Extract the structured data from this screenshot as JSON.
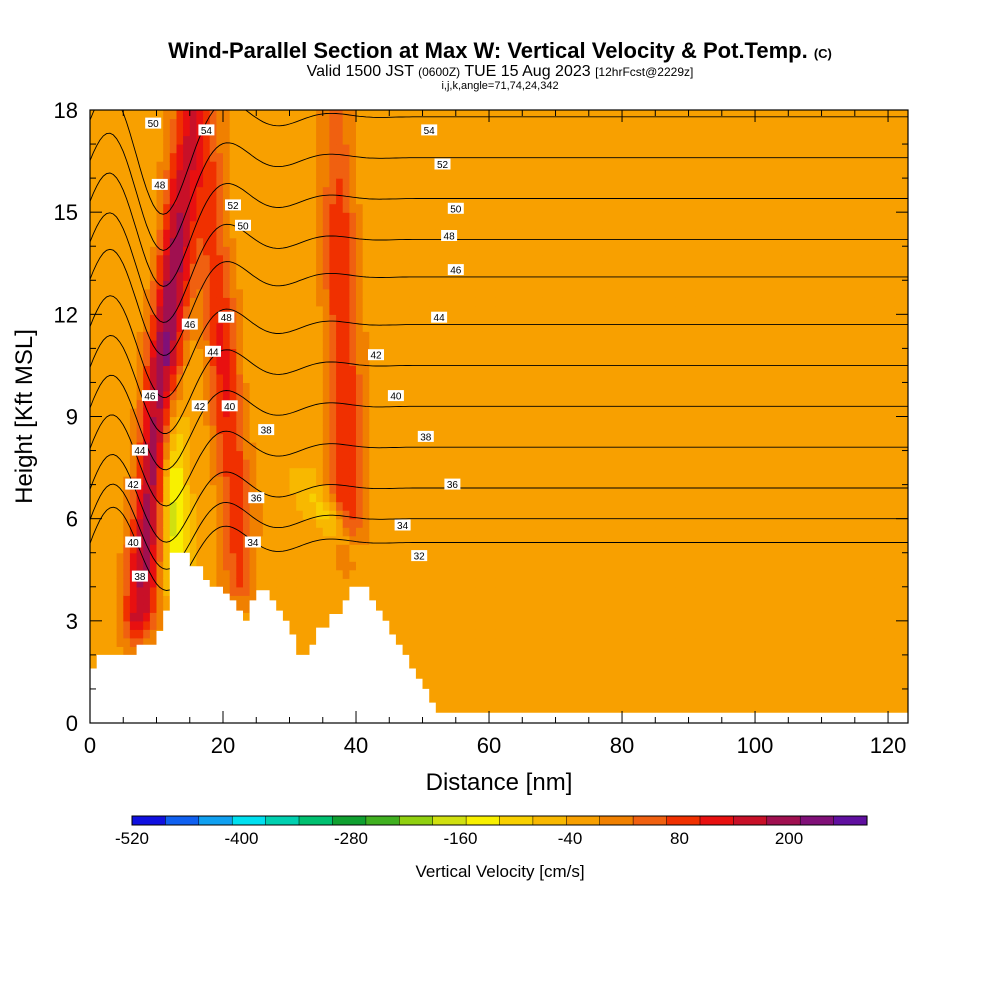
{
  "title": {
    "main": "Wind-Parallel Section at Max W: Vertical Velocity & Pot.Temp.",
    "copyright": "(C)",
    "valid_prefix": "Valid 1500 JST",
    "valid_utc": "(0600Z)",
    "valid_date": "TUE 15 Aug 2023",
    "forecast": "[12hrFcst@2229z]",
    "grid_info": "i,j,k,angle=71,74,24,342"
  },
  "colorbar": {
    "title": "Vertical Velocity [cm/s]",
    "tick_labels": [
      "-520",
      "-400",
      "-280",
      "-160",
      "-40",
      "80",
      "200"
    ],
    "tick_values": [
      -520,
      -400,
      -280,
      -160,
      -40,
      80,
      200
    ],
    "colors": [
      "#1010e0",
      "#1060f0",
      "#10a0f0",
      "#00e0f0",
      "#00d0b0",
      "#00c070",
      "#10a030",
      "#40b020",
      "#90d010",
      "#d0e010",
      "#f8f000",
      "#f8d000",
      "#f8b800",
      "#f8a000",
      "#f08000",
      "#f06010",
      "#f03000",
      "#e81010",
      "#c81028",
      "#a01050",
      "#801078",
      "#6010a0"
    ]
  },
  "chart_data": {
    "type": "heatmap",
    "title": "Wind-Parallel Section at Max W: Vertical Velocity & Pot.Temp.",
    "xlabel": "Distance [nm]",
    "ylabel": "Height [Kft MSL]",
    "xlim": [
      0,
      123
    ],
    "ylim": [
      0,
      18
    ],
    "x_ticks": [
      0,
      20,
      40,
      60,
      80,
      100,
      120
    ],
    "y_ticks": [
      0,
      3,
      6,
      9,
      12,
      15,
      18
    ],
    "fill_variable": "Vertical Velocity [cm/s]",
    "background_fill_level": "-40 to 0",
    "terrain": [
      [
        0,
        1.0
      ],
      [
        0,
        1.6
      ],
      [
        1,
        1.6
      ],
      [
        1,
        2.0
      ],
      [
        7,
        2.0
      ],
      [
        7,
        2.3
      ],
      [
        10,
        2.3
      ],
      [
        10,
        2.7
      ],
      [
        11,
        2.7
      ],
      [
        11,
        3.3
      ],
      [
        12,
        3.3
      ],
      [
        12,
        5.0
      ],
      [
        15,
        5.0
      ],
      [
        15,
        4.6
      ],
      [
        17,
        4.6
      ],
      [
        17,
        4.2
      ],
      [
        18,
        4.2
      ],
      [
        18,
        4.0
      ],
      [
        20,
        4.0
      ],
      [
        20,
        3.8
      ],
      [
        21,
        3.8
      ],
      [
        21,
        3.6
      ],
      [
        22,
        3.6
      ],
      [
        22,
        3.3
      ],
      [
        23,
        3.3
      ],
      [
        23,
        3.0
      ],
      [
        24,
        3.0
      ],
      [
        24,
        3.6
      ],
      [
        25,
        3.6
      ],
      [
        25,
        3.9
      ],
      [
        27,
        3.9
      ],
      [
        27,
        3.6
      ],
      [
        28,
        3.6
      ],
      [
        28,
        3.3
      ],
      [
        29,
        3.3
      ],
      [
        29,
        3.0
      ],
      [
        30,
        3.0
      ],
      [
        30,
        2.6
      ],
      [
        31,
        2.6
      ],
      [
        31,
        2.0
      ],
      [
        33,
        2.0
      ],
      [
        33,
        2.3
      ],
      [
        34,
        2.3
      ],
      [
        34,
        2.8
      ],
      [
        36,
        2.8
      ],
      [
        36,
        3.2
      ],
      [
        38,
        3.2
      ],
      [
        38,
        3.6
      ],
      [
        39,
        3.6
      ],
      [
        39,
        4.0
      ],
      [
        42,
        4.0
      ],
      [
        42,
        3.6
      ],
      [
        43,
        3.6
      ],
      [
        43,
        3.3
      ],
      [
        44,
        3.3
      ],
      [
        44,
        3.0
      ],
      [
        45,
        3.0
      ],
      [
        45,
        2.6
      ],
      [
        46,
        2.6
      ],
      [
        46,
        2.3
      ],
      [
        47,
        2.3
      ],
      [
        47,
        2.0
      ],
      [
        48,
        2.0
      ],
      [
        48,
        1.6
      ],
      [
        49,
        1.6
      ],
      [
        49,
        1.3
      ],
      [
        50,
        1.3
      ],
      [
        50,
        1.0
      ],
      [
        51,
        1.0
      ],
      [
        51,
        0.6
      ],
      [
        52,
        0.6
      ],
      [
        52,
        0.3
      ],
      [
        123,
        0.3
      ],
      [
        123,
        0
      ]
    ],
    "updraft_cores": [
      {
        "x_bottom": 7,
        "x_top": 15,
        "y_bottom": 2.5,
        "y_top": 18,
        "w_max": 250
      },
      {
        "x_bottom": 23,
        "x_top": 17,
        "y_bottom": 3.5,
        "y_top": 18,
        "w_max": 120
      },
      {
        "x_bottom": 39,
        "x_top": 37,
        "y_bottom": 4.5,
        "y_top": 18,
        "w_max": 120
      }
    ],
    "downdraft_cores": [
      {
        "x_bottom": 13,
        "x_top": 12,
        "y_bottom": 3.5,
        "y_top": 10,
        "w_min": -210
      },
      {
        "x_bottom": 41,
        "x_top": 33,
        "y_bottom": 4.5,
        "y_top": 7,
        "w_min": -130
      }
    ],
    "isentropes": [
      {
        "label": "32",
        "label_x": 92,
        "label_y": 5.5,
        "y_far": 5.3
      },
      {
        "label": "34",
        "label_x": 84,
        "label_y": 5.9,
        "y_far": 6.0
      },
      {
        "label": "36",
        "label_x": 80,
        "label_y": 6.9,
        "y_far": 6.9
      },
      {
        "label": "38",
        "label_x": 82,
        "label_y": 8.1,
        "y_far": 8.1
      },
      {
        "label": "40",
        "label_x": 78,
        "label_y": 9.4,
        "y_far": 9.3
      },
      {
        "label": "42",
        "label_x": 79,
        "label_y": 10.6,
        "y_far": 10.5
      },
      {
        "label": "44",
        "label_x": 88,
        "label_y": 11.8,
        "y_far": 11.7
      },
      {
        "label": "46",
        "label_x": 83,
        "label_y": 13.0,
        "y_far": 13.1
      },
      {
        "label": "48",
        "label_x": 84,
        "label_y": 14.2,
        "y_far": 14.2
      },
      {
        "label": "50",
        "label_x": 85,
        "label_y": 15.3,
        "y_far": 15.4
      },
      {
        "label": "52",
        "label_x": 89,
        "label_y": 16.5,
        "y_far": 16.6
      },
      {
        "label": "54",
        "label_x": 85,
        "label_y": 17.6,
        "y_far": 17.8
      }
    ],
    "contour_labels": [
      {
        "text": "54",
        "x": 51,
        "y": 17.4
      },
      {
        "text": "54",
        "x": 17.5,
        "y": 17.4
      },
      {
        "text": "50",
        "x": 9.5,
        "y": 17.6
      },
      {
        "text": "52",
        "x": 53,
        "y": 16.4
      },
      {
        "text": "48",
        "x": 10.5,
        "y": 15.8
      },
      {
        "text": "52",
        "x": 21.5,
        "y": 15.2
      },
      {
        "text": "50",
        "x": 55,
        "y": 15.1
      },
      {
        "text": "50",
        "x": 23,
        "y": 14.6
      },
      {
        "text": "48",
        "x": 54,
        "y": 14.3
      },
      {
        "text": "46",
        "x": 55,
        "y": 13.3
      },
      {
        "text": "46",
        "x": 15,
        "y": 11.7
      },
      {
        "text": "48",
        "x": 20.5,
        "y": 11.9
      },
      {
        "text": "44",
        "x": 52.5,
        "y": 11.9
      },
      {
        "text": "44",
        "x": 18.5,
        "y": 10.9
      },
      {
        "text": "42",
        "x": 43,
        "y": 10.8
      },
      {
        "text": "46",
        "x": 9,
        "y": 9.6
      },
      {
        "text": "42",
        "x": 16.5,
        "y": 9.3
      },
      {
        "text": "40",
        "x": 46,
        "y": 9.6
      },
      {
        "text": "40",
        "x": 21,
        "y": 9.3
      },
      {
        "text": "38",
        "x": 26.5,
        "y": 8.6
      },
      {
        "text": "38",
        "x": 50.5,
        "y": 8.4
      },
      {
        "text": "44",
        "x": 7.5,
        "y": 8.0
      },
      {
        "text": "42",
        "x": 6.5,
        "y": 7.0
      },
      {
        "text": "36",
        "x": 54.5,
        "y": 7.0
      },
      {
        "text": "36",
        "x": 25,
        "y": 6.6
      },
      {
        "text": "34",
        "x": 47,
        "y": 5.8
      },
      {
        "text": "40",
        "x": 6.5,
        "y": 5.3
      },
      {
        "text": "34",
        "x": 24.5,
        "y": 5.3
      },
      {
        "text": "32",
        "x": 49.5,
        "y": 4.9
      },
      {
        "text": "38",
        "x": 7.5,
        "y": 4.3
      }
    ]
  }
}
